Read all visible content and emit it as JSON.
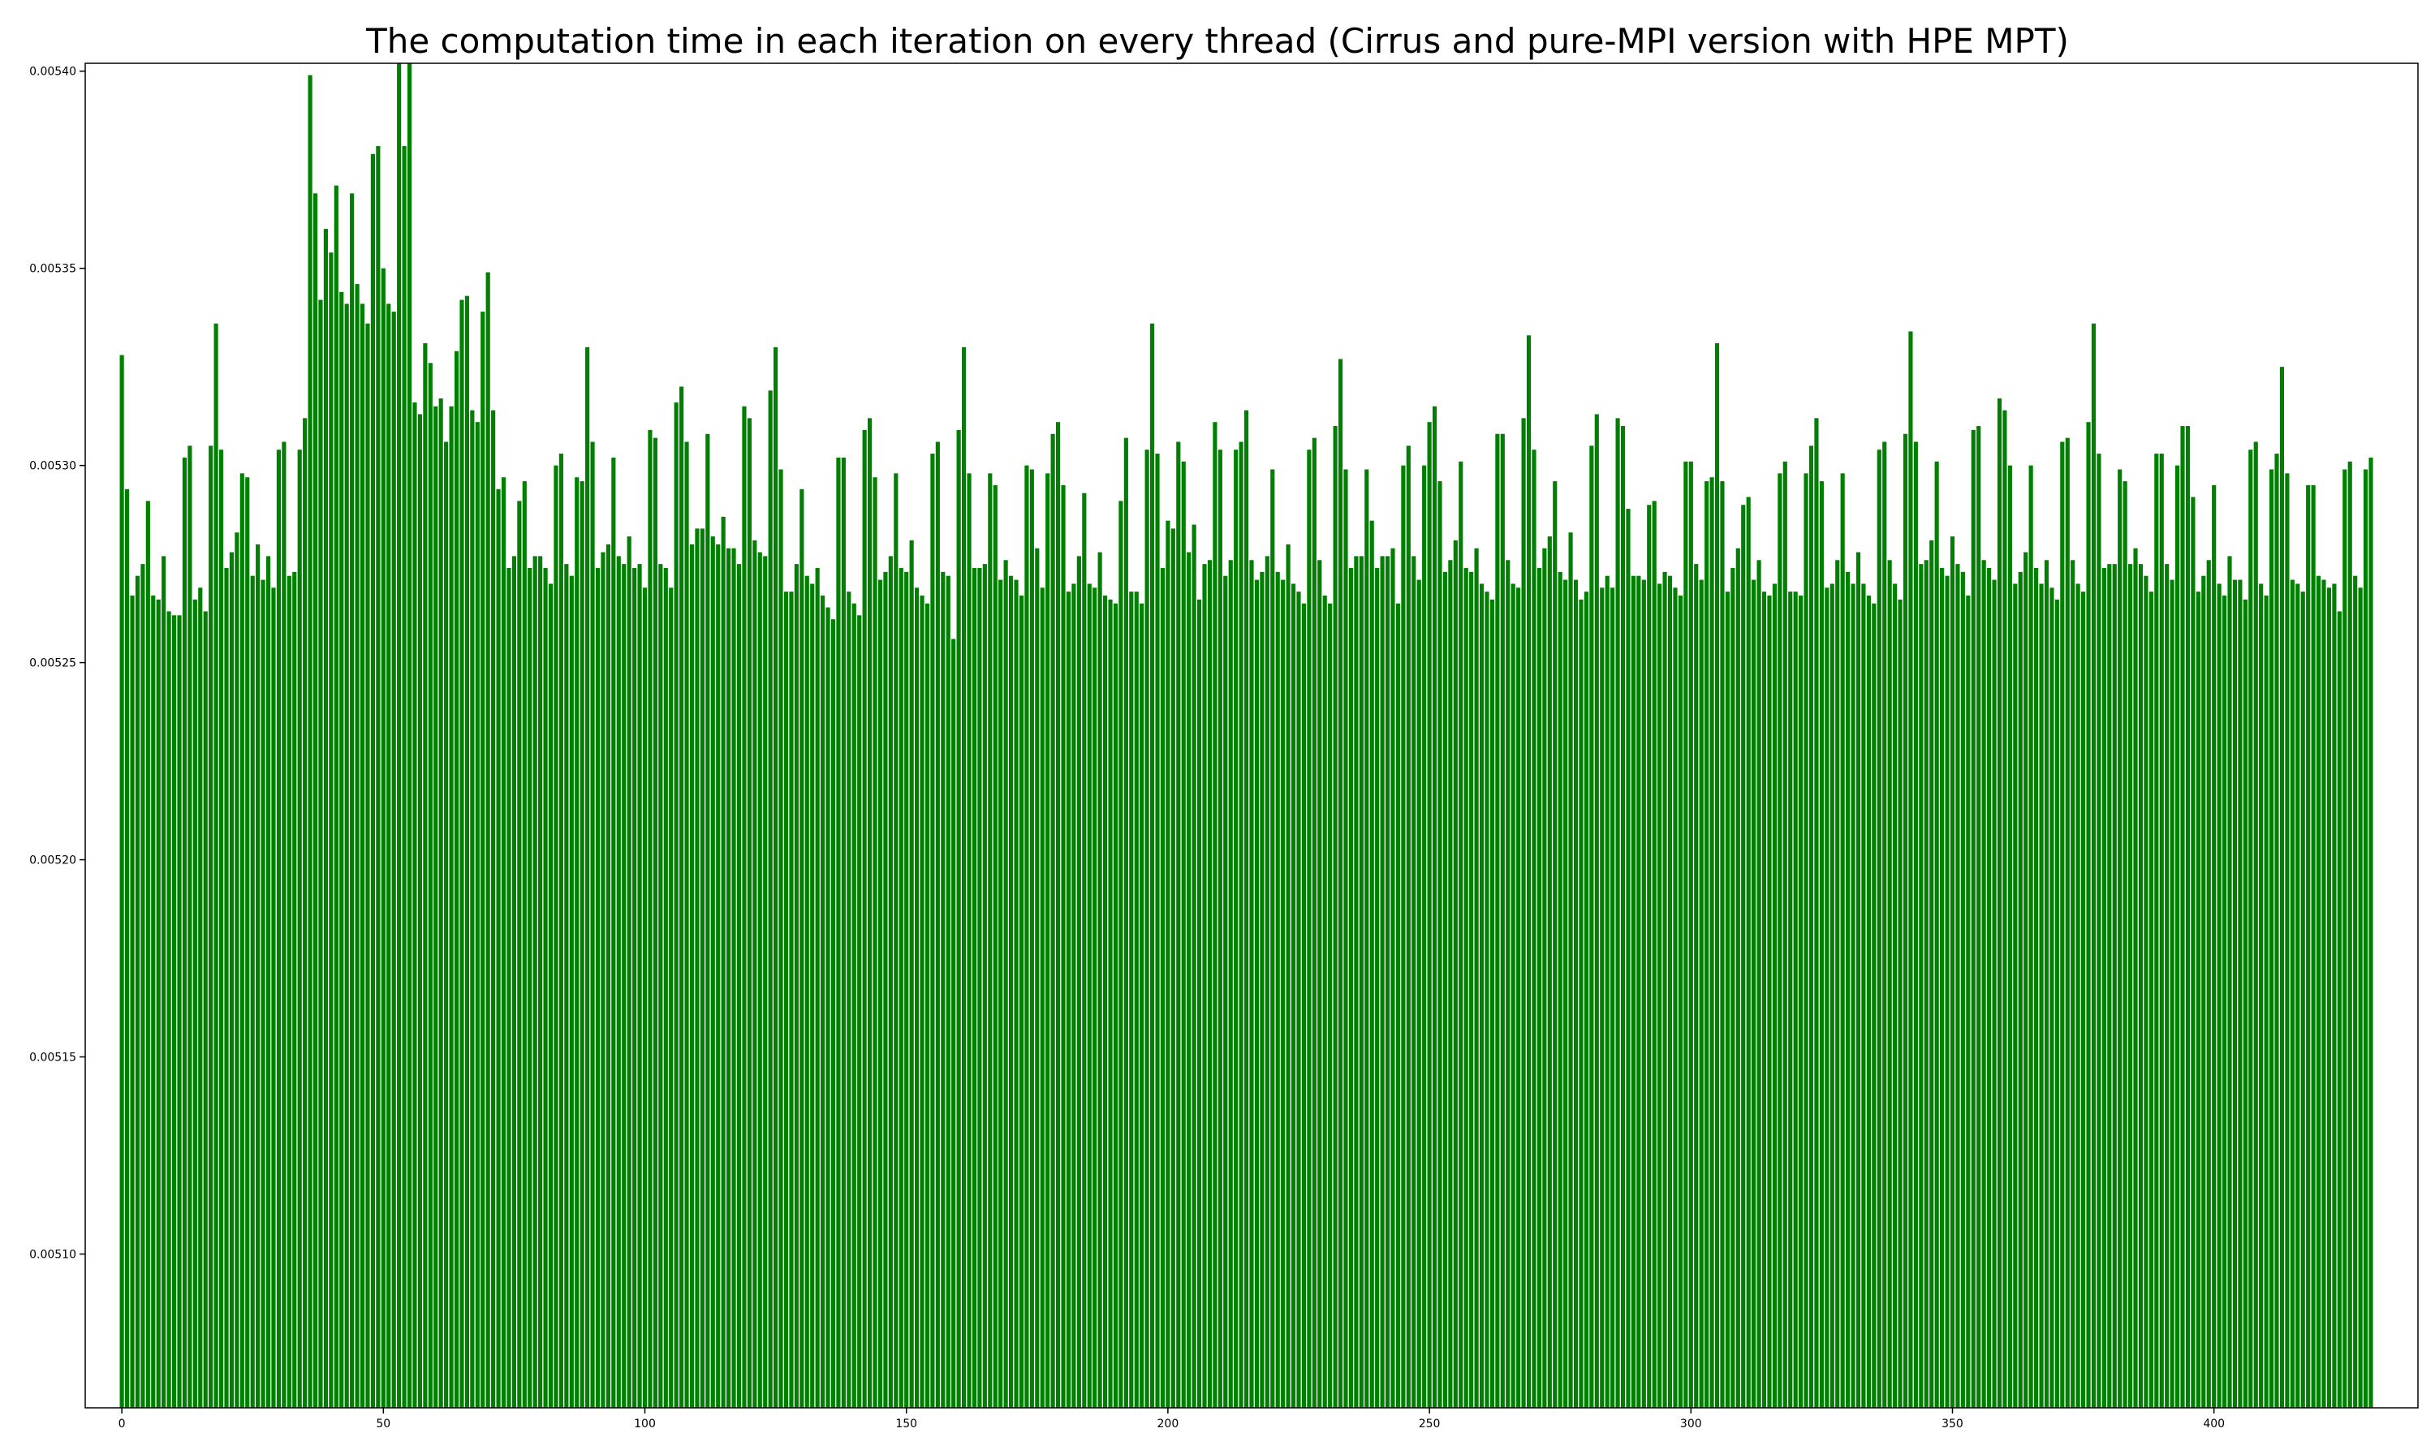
{
  "chart_data": {
    "type": "bar",
    "title": "The computation time in each iteration on every thread (Cirrus and pure-MPI version with HPE MPT)",
    "xlabel": "",
    "ylabel": "",
    "xlim": [
      -7,
      439
    ],
    "ylim": [
      0.005061,
      0.005402
    ],
    "x_ticks": [
      0,
      50,
      100,
      150,
      200,
      250,
      300,
      350,
      400
    ],
    "x_tick_labels": [
      "0",
      "50",
      "100",
      "150",
      "200",
      "250",
      "300",
      "350",
      "400"
    ],
    "y_ticks": [
      0.0051,
      0.00515,
      0.0052,
      0.00525,
      0.0053,
      0.00535,
      0.0054
    ],
    "y_tick_labels": [
      "0.00510",
      "0.00515",
      "0.00520",
      "0.00525",
      "0.00530",
      "0.00535",
      "0.00540"
    ],
    "grid": false,
    "legend": "none",
    "colors": {
      "bar": "#008000",
      "axis": "#000000"
    },
    "x_start": 0,
    "values": [
      0.005328,
      0.005294,
      0.005267,
      0.005272,
      0.005275,
      0.005291,
      0.005267,
      0.005266,
      0.005277,
      0.005263,
      0.005262,
      0.005262,
      0.005302,
      0.005305,
      0.005266,
      0.005269,
      0.005263,
      0.005305,
      0.005336,
      0.005304,
      0.005274,
      0.005278,
      0.005283,
      0.005298,
      0.005297,
      0.005272,
      0.00528,
      0.005271,
      0.005277,
      0.005269,
      0.005304,
      0.005306,
      0.005272,
      0.005273,
      0.005304,
      0.005312,
      0.005399,
      0.005369,
      0.005342,
      0.00536,
      0.005354,
      0.005371,
      0.005344,
      0.005341,
      0.005369,
      0.005346,
      0.005341,
      0.005336,
      0.005379,
      0.005381,
      0.00535,
      0.005341,
      0.005339,
      0.005403,
      0.005381,
      0.005403,
      0.005316,
      0.005313,
      0.005331,
      0.005326,
      0.005315,
      0.005317,
      0.005306,
      0.005315,
      0.005329,
      0.005342,
      0.005343,
      0.005314,
      0.005311,
      0.005339,
      0.005349,
      0.005314,
      0.005294,
      0.005297,
      0.005274,
      0.005277,
      0.005291,
      0.005296,
      0.005274,
      0.005277,
      0.005277,
      0.005274,
      0.00527,
      0.0053,
      0.005303,
      0.005275,
      0.005272,
      0.005297,
      0.005296,
      0.00533,
      0.005306,
      0.005274,
      0.005278,
      0.00528,
      0.005302,
      0.005277,
      0.005275,
      0.005282,
      0.005274,
      0.005275,
      0.005269,
      0.005309,
      0.005307,
      0.005275,
      0.005274,
      0.005269,
      0.005316,
      0.00532,
      0.005306,
      0.00528,
      0.005284,
      0.005284,
      0.005308,
      0.005282,
      0.00528,
      0.005287,
      0.005279,
      0.005279,
      0.005275,
      0.005315,
      0.005312,
      0.005281,
      0.005278,
      0.005277,
      0.005319,
      0.00533,
      0.005299,
      0.005268,
      0.005268,
      0.005275,
      0.005294,
      0.005272,
      0.00527,
      0.005274,
      0.005267,
      0.005264,
      0.005261,
      0.005302,
      0.005302,
      0.005268,
      0.005265,
      0.005262,
      0.005309,
      0.005312,
      0.005297,
      0.005271,
      0.005273,
      0.005277,
      0.005298,
      0.005274,
      0.005273,
      0.005281,
      0.005269,
      0.005267,
      0.005265,
      0.005303,
      0.005306,
      0.005273,
      0.005272,
      0.005256,
      0.005309,
      0.00533,
      0.005298,
      0.005274,
      0.005274,
      0.005275,
      0.005298,
      0.005295,
      0.005271,
      0.005276,
      0.005272,
      0.005271,
      0.005267,
      0.0053,
      0.005299,
      0.005279,
      0.005269,
      0.005298,
      0.005308,
      0.005311,
      0.005295,
      0.005268,
      0.00527,
      0.005277,
      0.005293,
      0.00527,
      0.005269,
      0.005278,
      0.005267,
      0.005266,
      0.005265,
      0.005291,
      0.005307,
      0.005268,
      0.005268,
      0.005265,
      0.005304,
      0.005336,
      0.005303,
      0.005274,
      0.005286,
      0.005284,
      0.005306,
      0.005301,
      0.005278,
      0.005285,
      0.005266,
      0.005275,
      0.005276,
      0.005311,
      0.005304,
      0.005272,
      0.005276,
      0.005304,
      0.005306,
      0.005314,
      0.005276,
      0.005271,
      0.005273,
      0.005277,
      0.005299,
      0.005273,
      0.005271,
      0.00528,
      0.00527,
      0.005268,
      0.005265,
      0.005304,
      0.005307,
      0.005276,
      0.005267,
      0.005265,
      0.00531,
      0.005327,
      0.005299,
      0.005274,
      0.005277,
      0.005277,
      0.005299,
      0.005286,
      0.005274,
      0.005277,
      0.005277,
      0.005279,
      0.005265,
      0.0053,
      0.005305,
      0.005277,
      0.005271,
      0.0053,
      0.005311,
      0.005315,
      0.005296,
      0.005273,
      0.005276,
      0.005281,
      0.005301,
      0.005274,
      0.005273,
      0.005279,
      0.00527,
      0.005268,
      0.005266,
      0.005308,
      0.005308,
      0.005276,
      0.00527,
      0.005269,
      0.005312,
      0.005333,
      0.005304,
      0.005274,
      0.005279,
      0.005282,
      0.005296,
      0.005273,
      0.005271,
      0.005283,
      0.005271,
      0.005266,
      0.005268,
      0.005305,
      0.005313,
      0.005269,
      0.005272,
      0.005269,
      0.005312,
      0.00531,
      0.005289,
      0.005272,
      0.005272,
      0.005271,
      0.00529,
      0.005291,
      0.00527,
      0.005273,
      0.005272,
      0.005269,
      0.005267,
      0.005301,
      0.005301,
      0.005275,
      0.005271,
      0.005296,
      0.005297,
      0.005331,
      0.005296,
      0.005268,
      0.005274,
      0.005279,
      0.00529,
      0.005292,
      0.005271,
      0.005276,
      0.005268,
      0.005267,
      0.00527,
      0.005298,
      0.005301,
      0.005268,
      0.005268,
      0.005267,
      0.005298,
      0.005305,
      0.005312,
      0.005296,
      0.005269,
      0.00527,
      0.005276,
      0.005298,
      0.005273,
      0.00527,
      0.005278,
      0.00527,
      0.005267,
      0.005265,
      0.005304,
      0.005306,
      0.005276,
      0.00527,
      0.005266,
      0.005308,
      0.005334,
      0.005306,
      0.005275,
      0.005276,
      0.005281,
      0.005301,
      0.005274,
      0.005272,
      0.005282,
      0.005275,
      0.005273,
      0.005267,
      0.005309,
      0.00531,
      0.005276,
      0.005274,
      0.005271,
      0.005317,
      0.005314,
      0.0053,
      0.00527,
      0.005273,
      0.005278,
      0.0053,
      0.005274,
      0.00527,
      0.005276,
      0.005269,
      0.005266,
      0.005306,
      0.005307,
      0.005276,
      0.00527,
      0.005268,
      0.005311,
      0.005336,
      0.005303,
      0.005274,
      0.005275,
      0.005275,
      0.005299,
      0.005296,
      0.005275,
      0.005279,
      0.005275,
      0.005272,
      0.005268,
      0.005303,
      0.005303,
      0.005275,
      0.005271,
      0.0053,
      0.00531,
      0.00531,
      0.005292,
      0.005268,
      0.005272,
      0.005276,
      0.005295,
      0.00527,
      0.005267,
      0.005277,
      0.005271,
      0.005271,
      0.005266,
      0.005304,
      0.005306,
      0.00527,
      0.005267,
      0.005299,
      0.005303,
      0.005325,
      0.005298,
      0.005271,
      0.00527,
      0.005268,
      0.005295,
      0.005295,
      0.005272,
      0.005271,
      0.005269,
      0.00527,
      0.005263,
      0.005299,
      0.005301,
      0.005272,
      0.005269,
      0.005299,
      0.005302
    ]
  }
}
